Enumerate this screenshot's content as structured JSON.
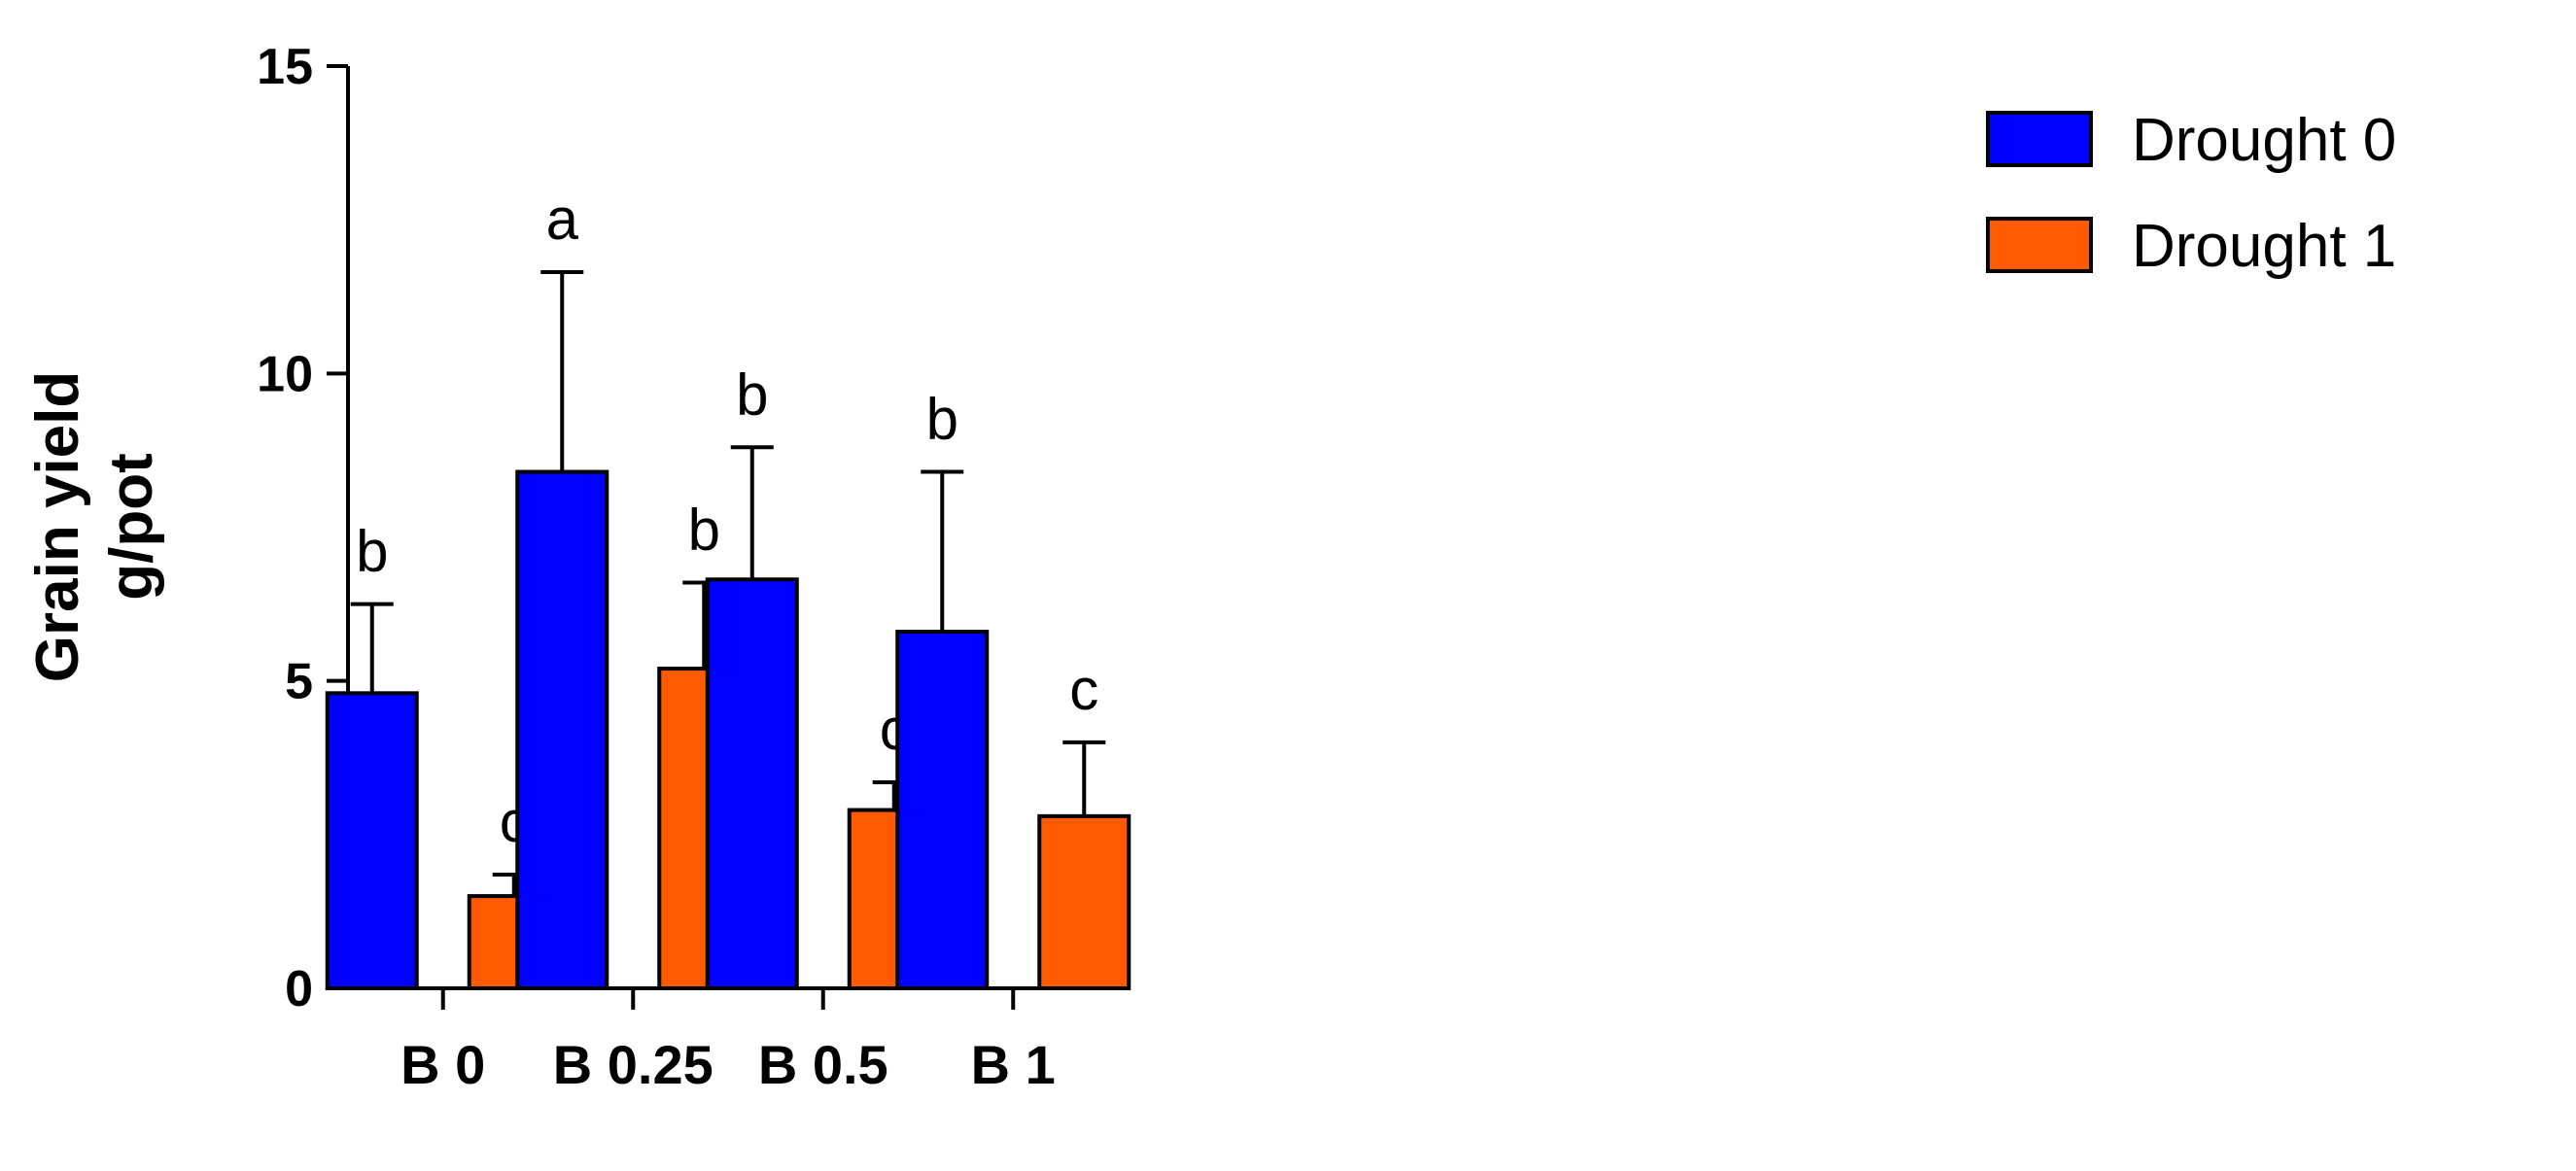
{
  "chart_data": {
    "type": "bar",
    "categories": [
      "B 0",
      "B 0.25",
      "B 0.5",
      "B 1"
    ],
    "series": [
      {
        "name": "Drought 0",
        "color": "#0000FF",
        "values": [
          4.8,
          8.4,
          6.65,
          5.8
        ],
        "errors": [
          1.45,
          3.25,
          2.15,
          2.6
        ],
        "letters": [
          "b",
          "a",
          "b",
          "b"
        ]
      },
      {
        "name": "Drought 1",
        "color": "#FF5A00",
        "values": [
          1.5,
          5.2,
          2.9,
          2.8
        ],
        "errors": [
          0.35,
          1.4,
          0.45,
          1.2
        ],
        "letters": [
          "c",
          "b",
          "c",
          "c"
        ]
      }
    ],
    "ylabel_lines": [
      "Grain yield",
      "g/pot"
    ],
    "xlabel": "",
    "ylim": [
      0,
      15
    ],
    "yticks": [
      "0",
      "5",
      "10",
      "15"
    ],
    "legend_position": "top-right",
    "grid": false
  }
}
